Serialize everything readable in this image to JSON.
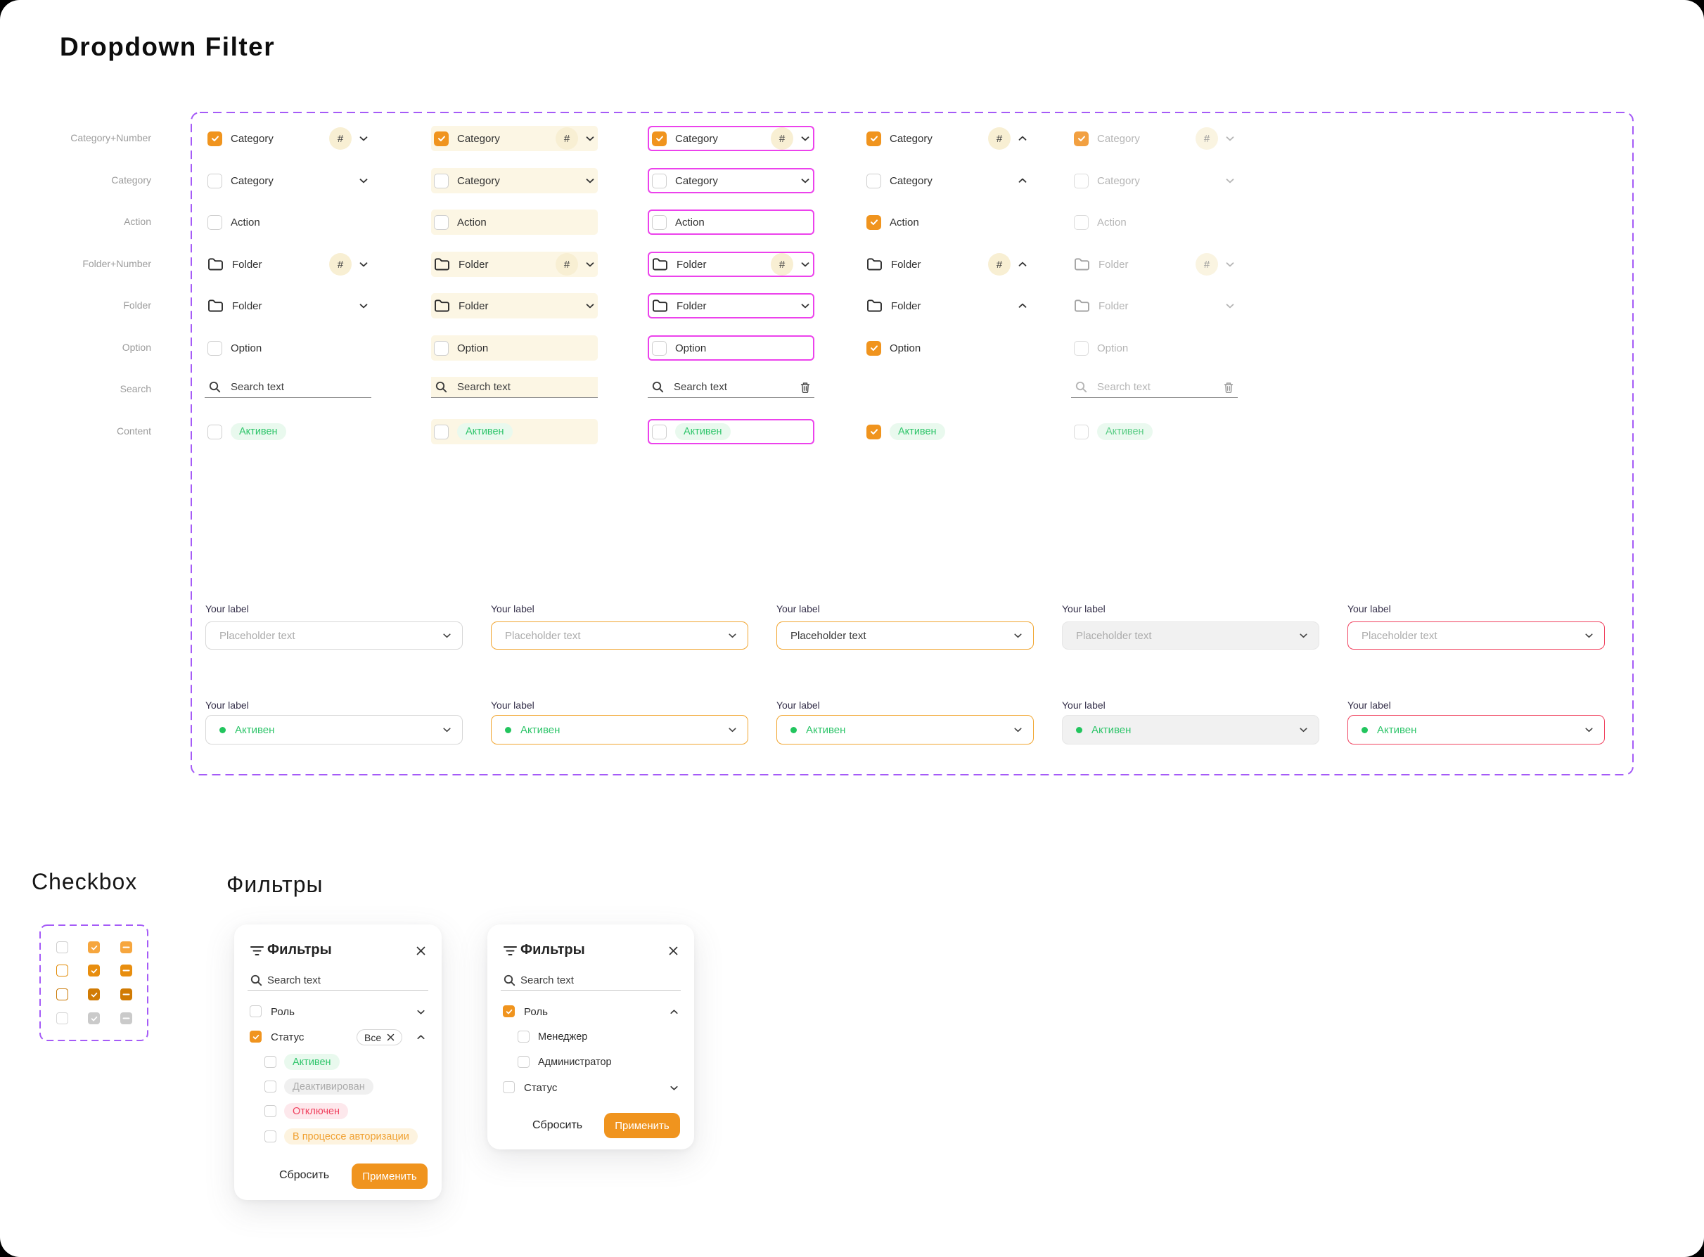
{
  "page": {
    "title": "Dropdown Filter"
  },
  "palette": {
    "orange": "#F0941E",
    "cream": "#FCF6E4",
    "badge": "#F8EFD3",
    "magenta": "#EC42EC",
    "purple": "#A55BF7",
    "green": "#2EC56A",
    "greenbg": "#E9F9EE",
    "red": "#F0425F",
    "selorange": "#F1A52F"
  },
  "sidebar_labels": [
    "Category+Number",
    "Category",
    "Action",
    "Folder+Number",
    "Folder",
    "Option",
    "Search",
    "Content"
  ],
  "grid": {
    "rows": [
      {
        "kind": "checkbox",
        "label": "Category",
        "badge": "#",
        "chevron": true
      },
      {
        "kind": "checkbox",
        "label": "Category",
        "chevron": true
      },
      {
        "kind": "checkbox",
        "label": "Action"
      },
      {
        "kind": "folder",
        "label": "Folder",
        "badge": "#",
        "chevron": true
      },
      {
        "kind": "folder",
        "label": "Folder",
        "chevron": true
      },
      {
        "kind": "checkbox",
        "label": "Option"
      },
      {
        "kind": "search",
        "label": "Search text"
      },
      {
        "kind": "content",
        "label": "Активен"
      }
    ],
    "columns": [
      {
        "variant": "default",
        "checked": [
          0
        ],
        "chevron_dir": "down",
        "trash": false,
        "show_search": true
      },
      {
        "variant": "hover",
        "checked": [
          0
        ],
        "chevron_dir": "down",
        "trash": false,
        "show_search": true
      },
      {
        "variant": "focus",
        "checked": [
          0
        ],
        "chevron_dir": "down",
        "trash": true,
        "show_search": true
      },
      {
        "variant": "open",
        "checked": [
          0,
          2,
          5,
          7
        ],
        "chevron_dir": "up",
        "trash": false,
        "show_search": false
      },
      {
        "variant": "disabled",
        "checked": [
          0
        ],
        "chevron_dir": "down",
        "trash": true,
        "show_search": true
      }
    ]
  },
  "selects": {
    "label": "Your label",
    "placeholder": "Placeholder text",
    "value": "Активен",
    "variants": [
      "default",
      "hover",
      "focus",
      "disabled",
      "error"
    ]
  },
  "checkbox_section": {
    "title": "Checkbox",
    "row_colors": [
      {
        "border": "#cdcdcd",
        "fill": "#F6A63E"
      },
      {
        "border": "#E18A04",
        "fill": "#E88E0F"
      },
      {
        "border": "#C97803",
        "fill": "#D17B04"
      },
      {
        "border": "#d6d6d6",
        "fill": "#CACACA"
      }
    ]
  },
  "filters_section": {
    "title": "Фильтры",
    "panel1": {
      "title": "Фильтры",
      "search": "Search text",
      "group1": {
        "label": "Роль",
        "checked": false,
        "chevron": "down"
      },
      "group2": {
        "label": "Статус",
        "checked": true,
        "chevron": "up",
        "pill": "Все"
      },
      "options": [
        {
          "label": "Активен",
          "style": "green"
        },
        {
          "label": "Деактивирован",
          "style": "gray"
        },
        {
          "label": "Отключен",
          "style": "red"
        },
        {
          "label": "В процессе авторизации",
          "style": "orange"
        }
      ],
      "reset": "Сбросить",
      "apply": "Применить"
    },
    "panel2": {
      "title": "Фильтры",
      "search": "Search text",
      "group1": {
        "label": "Роль",
        "checked": true,
        "chevron": "up"
      },
      "subs": [
        "Менеджер",
        "Администратор"
      ],
      "group2": {
        "label": "Статус",
        "checked": false,
        "chevron": "down"
      },
      "reset": "Сбросить",
      "apply": "Применить"
    }
  }
}
